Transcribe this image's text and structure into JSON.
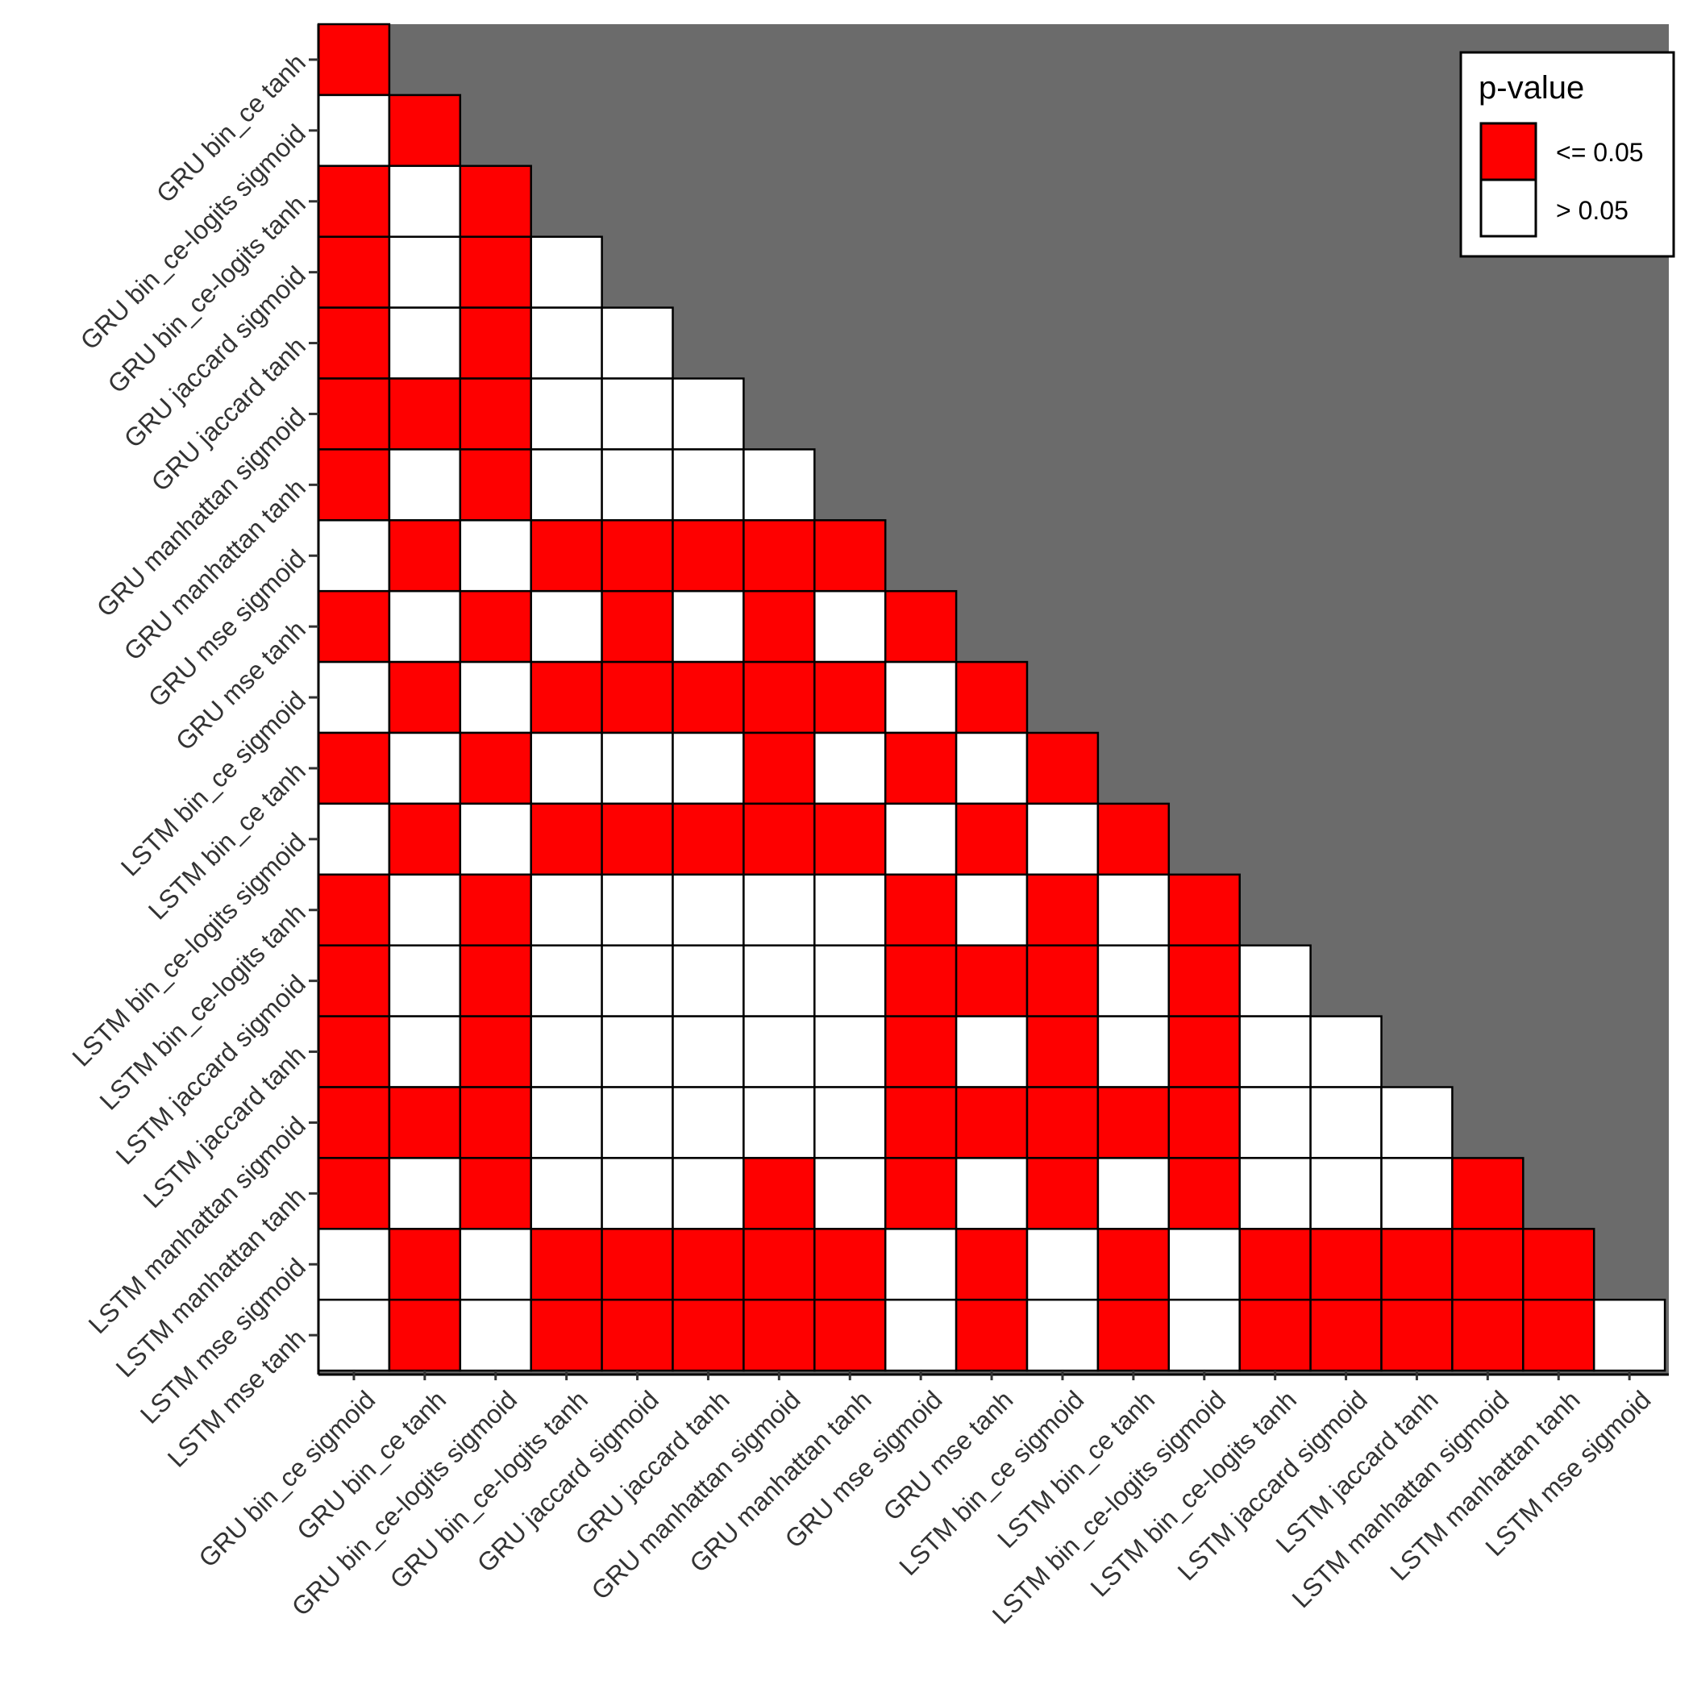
{
  "chart_data": {
    "type": "heatmap",
    "title": "",
    "xlabel": "",
    "ylabel": "",
    "categories": [
      "GRU bin_ce sigmoid",
      "GRU bin_ce tanh",
      "GRU bin_ce-logits sigmoid",
      "GRU bin_ce-logits tanh",
      "GRU jaccard sigmoid",
      "GRU jaccard tanh",
      "GRU manhattan sigmoid",
      "GRU manhattan tanh",
      "GRU mse sigmoid",
      "GRU mse tanh",
      "LSTM bin_ce sigmoid",
      "LSTM bin_ce tanh",
      "LSTM bin_ce-logits sigmoid",
      "LSTM bin_ce-logits tanh",
      "LSTM jaccard sigmoid",
      "LSTM jaccard tanh",
      "LSTM manhattan sigmoid",
      "LSTM manhattan tanh",
      "LSTM mse sigmoid",
      "LSTM mse tanh"
    ],
    "x_categories": [
      "GRU bin_ce sigmoid",
      "GRU bin_ce tanh",
      "GRU bin_ce-logits sigmoid",
      "GRU bin_ce-logits tanh",
      "GRU jaccard sigmoid",
      "GRU jaccard tanh",
      "GRU manhattan sigmoid",
      "GRU manhattan tanh",
      "GRU mse sigmoid",
      "GRU mse tanh",
      "LSTM bin_ce sigmoid",
      "LSTM bin_ce tanh",
      "LSTM bin_ce-logits sigmoid",
      "LSTM bin_ce-logits tanh",
      "LSTM jaccard sigmoid",
      "LSTM jaccard tanh",
      "LSTM manhattan sigmoid",
      "LSTM manhattan tanh",
      "LSTM mse sigmoid"
    ],
    "y_categories": [
      "GRU bin_ce tanh",
      "GRU bin_ce-logits sigmoid",
      "GRU bin_ce-logits tanh",
      "GRU jaccard sigmoid",
      "GRU jaccard tanh",
      "GRU manhattan sigmoid",
      "GRU manhattan tanh",
      "GRU mse sigmoid",
      "GRU mse tanh",
      "LSTM bin_ce sigmoid",
      "LSTM bin_ce tanh",
      "LSTM bin_ce-logits sigmoid",
      "LSTM bin_ce-logits tanh",
      "LSTM jaccard sigmoid",
      "LSTM jaccard tanh",
      "LSTM manhattan sigmoid",
      "LSTM manhattan tanh",
      "LSTM mse sigmoid",
      "LSTM mse tanh"
    ],
    "cell_values_note": "1 = p-value <= 0.05 (red), 0 = p-value > 0.05 (white); row i (y_categories[i]) has i+1 cells against x_categories[0..i]",
    "cells": [
      [
        1
      ],
      [
        0,
        1
      ],
      [
        1,
        0,
        1
      ],
      [
        1,
        0,
        1,
        0
      ],
      [
        1,
        0,
        1,
        0,
        0
      ],
      [
        1,
        1,
        1,
        0,
        0,
        0
      ],
      [
        1,
        0,
        1,
        0,
        0,
        0,
        0
      ],
      [
        0,
        1,
        0,
        1,
        1,
        1,
        1,
        1
      ],
      [
        1,
        0,
        1,
        0,
        1,
        0,
        1,
        0,
        1
      ],
      [
        0,
        1,
        0,
        1,
        1,
        1,
        1,
        1,
        0,
        1
      ],
      [
        1,
        0,
        1,
        0,
        0,
        0,
        1,
        0,
        1,
        0,
        1
      ],
      [
        0,
        1,
        0,
        1,
        1,
        1,
        1,
        1,
        0,
        1,
        0,
        1
      ],
      [
        1,
        0,
        1,
        0,
        0,
        0,
        0,
        0,
        1,
        0,
        1,
        0,
        1
      ],
      [
        1,
        0,
        1,
        0,
        0,
        0,
        0,
        0,
        1,
        1,
        1,
        0,
        1,
        0
      ],
      [
        1,
        0,
        1,
        0,
        0,
        0,
        0,
        0,
        1,
        0,
        1,
        0,
        1,
        0,
        0
      ],
      [
        1,
        1,
        1,
        0,
        0,
        0,
        0,
        0,
        1,
        1,
        1,
        1,
        1,
        0,
        0,
        0
      ],
      [
        1,
        0,
        1,
        0,
        0,
        0,
        1,
        0,
        1,
        0,
        1,
        0,
        1,
        0,
        0,
        0,
        1
      ],
      [
        0,
        1,
        0,
        1,
        1,
        1,
        1,
        1,
        0,
        1,
        0,
        1,
        0,
        1,
        1,
        1,
        1,
        1
      ],
      [
        0,
        1,
        0,
        1,
        1,
        1,
        1,
        1,
        0,
        1,
        0,
        1,
        0,
        1,
        1,
        1,
        1,
        1,
        0
      ]
    ],
    "legend": {
      "title": "p-value",
      "position": "top-right",
      "items": [
        {
          "label": "<= 0.05",
          "value": 1
        },
        {
          "label": "> 0.05",
          "value": 0
        }
      ]
    },
    "colors": {
      "significant": "#fe0000",
      "not_significant": "#ffffff",
      "panel_background": "#6b6b6b",
      "cell_border": "#000000",
      "tick_label": "#333333"
    },
    "grid": false
  }
}
